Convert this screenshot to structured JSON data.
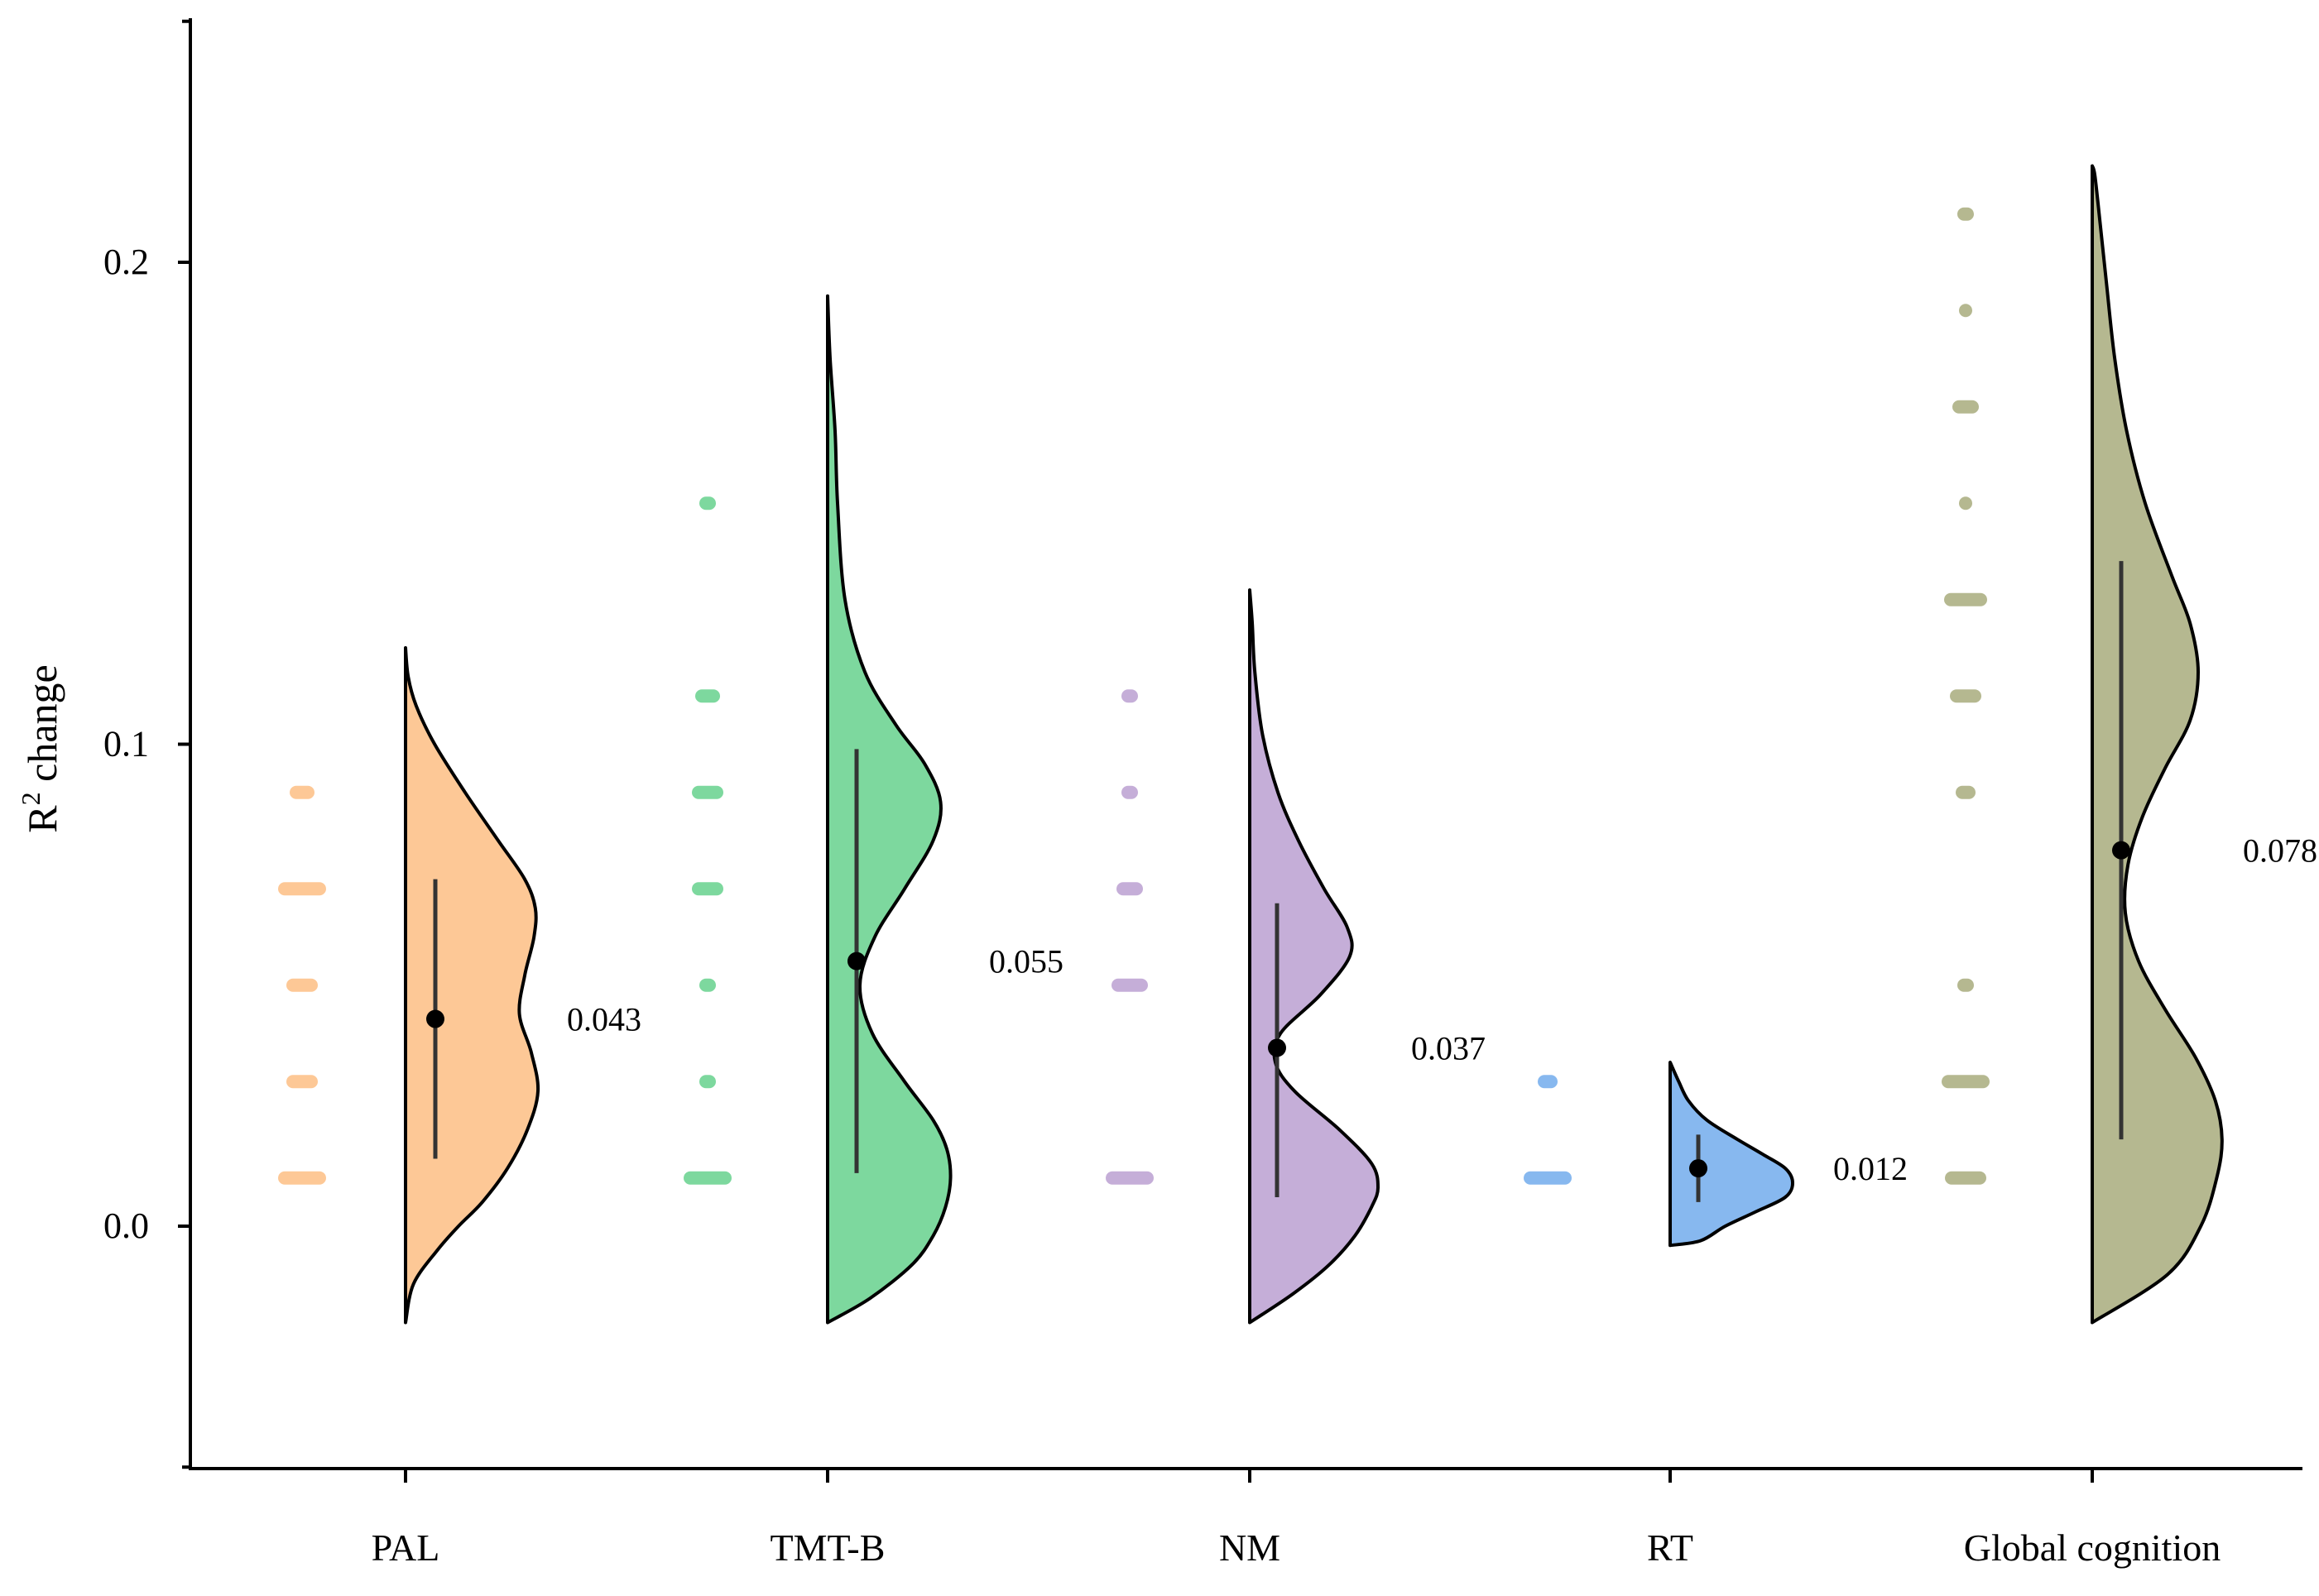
{
  "chart_data": {
    "type": "raincloud",
    "title": "",
    "xlabel": "",
    "ylabel": "R",
    "ylabel_superscript": "2",
    "ylabel_suffix": " change",
    "ylim": [
      -0.05,
      0.25
    ],
    "yticks": [
      0.0,
      0.1,
      0.2
    ],
    "ytick_labels": [
      "0.0",
      "0.1",
      "0.2"
    ],
    "categories": [
      "PAL",
      "TMT-B",
      "NM",
      "RT",
      "Global cognition"
    ],
    "series": [
      {
        "name": "PAL",
        "color": "#fdc896",
        "mean": 0.043,
        "mean_label": "0.043",
        "whisker": [
          0.014,
          0.072
        ],
        "violin_range": [
          -0.02,
          0.12
        ],
        "density": [
          [
            -0.02,
            0.0
          ],
          [
            -0.012,
            0.06
          ],
          [
            -0.005,
            0.24
          ],
          [
            0.0,
            0.4
          ],
          [
            0.005,
            0.58
          ],
          [
            0.012,
            0.77
          ],
          [
            0.02,
            0.92
          ],
          [
            0.028,
            1.0
          ],
          [
            0.036,
            0.95
          ],
          [
            0.044,
            0.86
          ],
          [
            0.052,
            0.9
          ],
          [
            0.06,
            0.97
          ],
          [
            0.066,
            0.98
          ],
          [
            0.072,
            0.9
          ],
          [
            0.08,
            0.7
          ],
          [
            0.09,
            0.45
          ],
          [
            0.1,
            0.22
          ],
          [
            0.108,
            0.08
          ],
          [
            0.114,
            0.02
          ],
          [
            0.12,
            0.0
          ]
        ],
        "points": [
          {
            "y": 0.01,
            "w": 58
          },
          {
            "y": 0.03,
            "w": 38
          },
          {
            "y": 0.05,
            "w": 38
          },
          {
            "y": 0.07,
            "w": 58
          },
          {
            "y": 0.09,
            "w": 30
          }
        ]
      },
      {
        "name": "TMT-B",
        "color": "#7dd89e",
        "mean": 0.055,
        "mean_label": "0.055",
        "whisker": [
          0.011,
          0.099
        ],
        "violin_range": [
          -0.02,
          0.193
        ],
        "density": [
          [
            -0.02,
            0.0
          ],
          [
            -0.015,
            0.34
          ],
          [
            -0.008,
            0.68
          ],
          [
            -0.002,
            0.85
          ],
          [
            0.004,
            0.95
          ],
          [
            0.01,
            0.99
          ],
          [
            0.016,
            0.96
          ],
          [
            0.022,
            0.85
          ],
          [
            0.03,
            0.62
          ],
          [
            0.04,
            0.36
          ],
          [
            0.05,
            0.26
          ],
          [
            0.06,
            0.38
          ],
          [
            0.07,
            0.62
          ],
          [
            0.08,
            0.85
          ],
          [
            0.088,
            0.91
          ],
          [
            0.096,
            0.78
          ],
          [
            0.104,
            0.55
          ],
          [
            0.115,
            0.3
          ],
          [
            0.13,
            0.14
          ],
          [
            0.15,
            0.08
          ],
          [
            0.165,
            0.06
          ],
          [
            0.18,
            0.02
          ],
          [
            0.193,
            0.0
          ]
        ],
        "points": [
          {
            "y": 0.01,
            "w": 58
          },
          {
            "y": 0.03,
            "w": 20
          },
          {
            "y": 0.05,
            "w": 20
          },
          {
            "y": 0.07,
            "w": 38
          },
          {
            "y": 0.09,
            "w": 38
          },
          {
            "y": 0.11,
            "w": 30
          },
          {
            "y": 0.15,
            "w": 20
          }
        ]
      },
      {
        "name": "NM",
        "color": "#c5aed8",
        "mean": 0.037,
        "mean_label": "0.037",
        "whisker": [
          0.006,
          0.067
        ],
        "violin_range": [
          -0.02,
          0.132
        ],
        "density": [
          [
            -0.02,
            0.0
          ],
          [
            -0.014,
            0.34
          ],
          [
            -0.008,
            0.62
          ],
          [
            -0.002,
            0.82
          ],
          [
            0.004,
            0.95
          ],
          [
            0.008,
            1.0
          ],
          [
            0.013,
            0.95
          ],
          [
            0.02,
            0.7
          ],
          [
            0.028,
            0.35
          ],
          [
            0.034,
            0.2
          ],
          [
            0.04,
            0.24
          ],
          [
            0.048,
            0.55
          ],
          [
            0.056,
            0.78
          ],
          [
            0.062,
            0.76
          ],
          [
            0.07,
            0.58
          ],
          [
            0.08,
            0.38
          ],
          [
            0.09,
            0.22
          ],
          [
            0.102,
            0.1
          ],
          [
            0.115,
            0.04
          ],
          [
            0.125,
            0.02
          ],
          [
            0.132,
            0.0
          ]
        ],
        "points": [
          {
            "y": 0.01,
            "w": 58
          },
          {
            "y": 0.05,
            "w": 44
          },
          {
            "y": 0.07,
            "w": 32
          },
          {
            "y": 0.09,
            "w": 20
          },
          {
            "y": 0.11,
            "w": 20
          }
        ]
      },
      {
        "name": "RT",
        "color": "#87b8ef",
        "mean": 0.012,
        "mean_label": "0.012",
        "whisker": [
          0.005,
          0.019
        ],
        "violin_range": [
          -0.004,
          0.034
        ],
        "density": [
          [
            -0.004,
            0.0
          ],
          [
            -0.003,
            0.25
          ],
          [
            0.0,
            0.45
          ],
          [
            0.003,
            0.7
          ],
          [
            0.006,
            0.94
          ],
          [
            0.009,
            1.0
          ],
          [
            0.012,
            0.94
          ],
          [
            0.015,
            0.75
          ],
          [
            0.018,
            0.55
          ],
          [
            0.022,
            0.3
          ],
          [
            0.026,
            0.15
          ],
          [
            0.03,
            0.07
          ],
          [
            0.034,
            0.0
          ]
        ],
        "points": [
          {
            "y": 0.01,
            "w": 58
          },
          {
            "y": 0.03,
            "w": 24
          }
        ]
      },
      {
        "name": "Global cognition",
        "color": "#b5b890",
        "mean": 0.078,
        "mean_label": "0.078",
        "whisker": [
          0.018,
          0.138
        ],
        "violin_range": [
          -0.02,
          0.22
        ],
        "density": [
          [
            -0.02,
            0.0
          ],
          [
            -0.01,
            0.57
          ],
          [
            0.0,
            0.82
          ],
          [
            0.01,
            0.94
          ],
          [
            0.018,
            0.98
          ],
          [
            0.026,
            0.93
          ],
          [
            0.035,
            0.78
          ],
          [
            0.045,
            0.55
          ],
          [
            0.055,
            0.35
          ],
          [
            0.065,
            0.25
          ],
          [
            0.075,
            0.27
          ],
          [
            0.085,
            0.38
          ],
          [
            0.095,
            0.55
          ],
          [
            0.105,
            0.74
          ],
          [
            0.115,
            0.8
          ],
          [
            0.125,
            0.74
          ],
          [
            0.135,
            0.6
          ],
          [
            0.15,
            0.4
          ],
          [
            0.165,
            0.26
          ],
          [
            0.18,
            0.17
          ],
          [
            0.195,
            0.11
          ],
          [
            0.208,
            0.06
          ],
          [
            0.218,
            0.02
          ],
          [
            0.22,
            0.0
          ]
        ],
        "points": [
          {
            "y": 0.01,
            "w": 50
          },
          {
            "y": 0.03,
            "w": 58
          },
          {
            "y": 0.05,
            "w": 20
          },
          {
            "y": 0.09,
            "w": 24
          },
          {
            "y": 0.11,
            "w": 38
          },
          {
            "y": 0.13,
            "w": 52
          },
          {
            "y": 0.15,
            "w": 16
          },
          {
            "y": 0.17,
            "w": 32
          },
          {
            "y": 0.19,
            "w": 16
          },
          {
            "y": 0.21,
            "w": 20
          }
        ]
      }
    ]
  }
}
